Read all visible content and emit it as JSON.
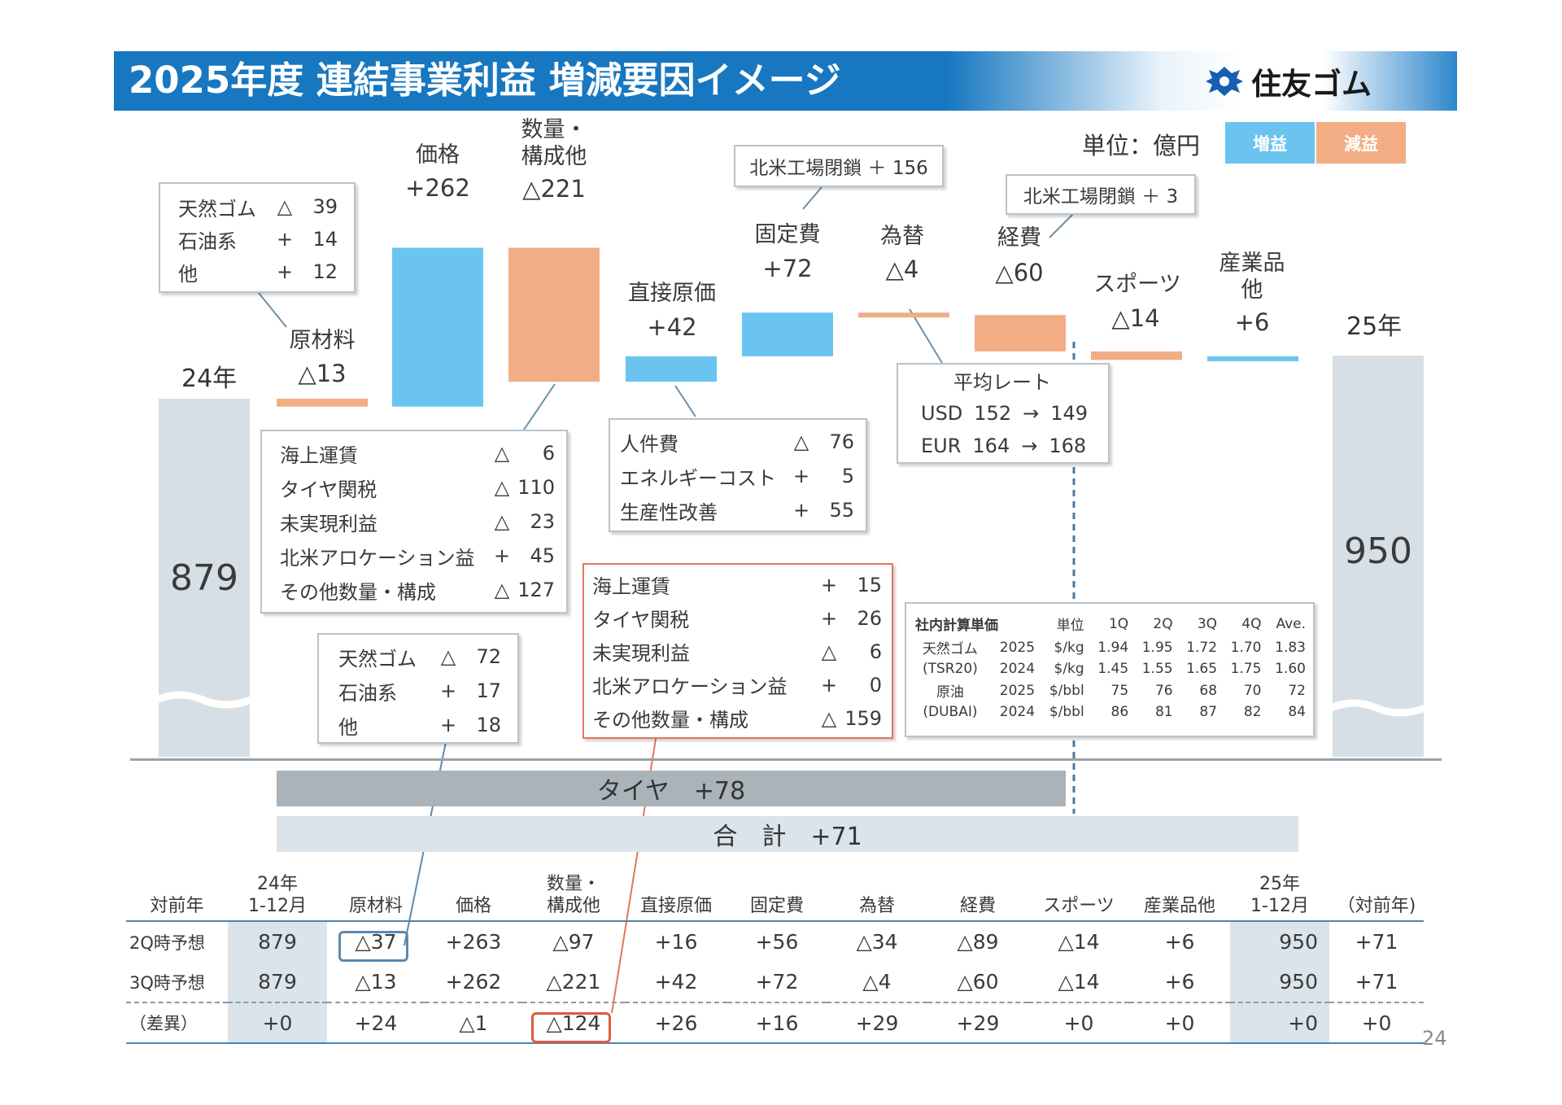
{
  "title": "2025年度 連結事業利益 増減要因イメージ",
  "company": "住友ゴム",
  "unit_label": "単位：億円",
  "legend": {
    "increase": "増益",
    "decrease": "減益",
    "increase_color": "#6ac4ef",
    "decrease_color": "#f2ad85"
  },
  "chart_data": {
    "type": "waterfall",
    "start": {
      "label": "24年",
      "value": 879
    },
    "end": {
      "label": "25年",
      "value": 950
    },
    "steps": [
      {
        "name": "原材料",
        "label": "原材料",
        "value": -13,
        "display": "△13"
      },
      {
        "name": "価格",
        "label": "価格",
        "value": 262,
        "display": "+262"
      },
      {
        "name": "数量",
        "label": "数量・\n構成他",
        "value": -221,
        "display": "△221"
      },
      {
        "name": "直接原価",
        "label": "直接原価",
        "value": 42,
        "display": "+42"
      },
      {
        "name": "固定費",
        "label": "固定費",
        "value": 72,
        "display": "+72"
      },
      {
        "name": "為替",
        "label": "為替",
        "value": -4,
        "display": "△4"
      },
      {
        "name": "経費",
        "label": "経費",
        "value": -60,
        "display": "△60"
      },
      {
        "name": "スポーツ",
        "label": "スポーツ",
        "value": -14,
        "display": "△14"
      },
      {
        "name": "産業品他",
        "label": "産業品\n他",
        "value": 6,
        "display": "+6"
      }
    ],
    "segment_label": "タイヤ　+78",
    "total_label": "合　計　+71"
  },
  "callouts": {
    "raw_top": [
      {
        "name": "天然ゴム",
        "sign": "△",
        "value": "39"
      },
      {
        "name": "石油系",
        "sign": "+",
        "value": "14"
      },
      {
        "name": "他",
        "sign": "+",
        "value": "12"
      }
    ],
    "volume": [
      {
        "name": "海上運賃",
        "sign": "△",
        "value": "6"
      },
      {
        "name": "タイヤ関税",
        "sign": "△",
        "value": "110"
      },
      {
        "name": "未実現利益",
        "sign": "△",
        "value": "23"
      },
      {
        "name": "北米アロケーション益",
        "sign": "+",
        "value": "45"
      },
      {
        "name": "その他数量・構成",
        "sign": "△",
        "value": "127"
      }
    ],
    "raw_diff": [
      {
        "name": "天然ゴム",
        "sign": "△",
        "value": "72"
      },
      {
        "name": "石油系",
        "sign": "+",
        "value": "17"
      },
      {
        "name": "他",
        "sign": "+",
        "value": "18"
      }
    ],
    "direct_cost": [
      {
        "name": "人件費",
        "sign": "△",
        "value": "76"
      },
      {
        "name": "エネルギーコスト",
        "sign": "+",
        "value": "5"
      },
      {
        "name": "生産性改善",
        "sign": "+",
        "value": "55"
      }
    ],
    "volume_diff": [
      {
        "name": "海上運賃",
        "sign": "+",
        "value": "15"
      },
      {
        "name": "タイヤ関税",
        "sign": "+",
        "value": "26"
      },
      {
        "name": "未実現利益",
        "sign": "△",
        "value": "6"
      },
      {
        "name": "北米アロケーション益",
        "sign": "+",
        "value": "0"
      },
      {
        "name": "その他数量・構成",
        "sign": "△",
        "value": "159"
      }
    ],
    "fixed_note": "北米工場閉鎖 ＋ 156",
    "expense_note": "北米工場閉鎖 ＋ 3",
    "fx": {
      "title": "平均レート",
      "rows": [
        {
          "cur": "USD",
          "from": "152",
          "to": "149"
        },
        {
          "cur": "EUR",
          "from": "164",
          "to": "168"
        }
      ]
    },
    "internal_price": {
      "header": [
        "社内計算単価",
        "単位",
        "1Q",
        "2Q",
        "3Q",
        "4Q",
        "Ave."
      ],
      "rows": [
        [
          "天然ゴム",
          "2025",
          "$/kg",
          "1.94",
          "1.95",
          "1.72",
          "1.70",
          "1.83"
        ],
        [
          "(TSR20)",
          "2024",
          "$/kg",
          "1.45",
          "1.55",
          "1.65",
          "1.75",
          "1.60"
        ],
        [
          "原油",
          "2025",
          "$/bbl",
          "75",
          "76",
          "68",
          "70",
          "72"
        ],
        [
          "(DUBAI)",
          "2024",
          "$/bbl",
          "86",
          "81",
          "87",
          "82",
          "84"
        ]
      ]
    }
  },
  "comparison": {
    "headers": [
      "対前年",
      "24年\n1-12月",
      "原材料",
      "価格",
      "数量・\n構成他",
      "直接原価",
      "固定費",
      "為替",
      "経費",
      "スポーツ",
      "産業品他",
      "25年\n1-12月",
      "（対前年)"
    ],
    "rows": [
      [
        "2Q時予想",
        "879",
        "△37",
        "+263",
        "△97",
        "+16",
        "+56",
        "△34",
        "△89",
        "△14",
        "+6",
        "950",
        "+71"
      ],
      [
        "3Q時予想",
        "879",
        "△13",
        "+262",
        "△221",
        "+42",
        "+72",
        "△4",
        "△60",
        "△14",
        "+6",
        "950",
        "+71"
      ],
      [
        "（差異）",
        "+0",
        "+24",
        "△1",
        "△124",
        "+26",
        "+16",
        "+29",
        "+29",
        "+0",
        "+0",
        "+0",
        "+0"
      ]
    ]
  },
  "page_number": "24"
}
